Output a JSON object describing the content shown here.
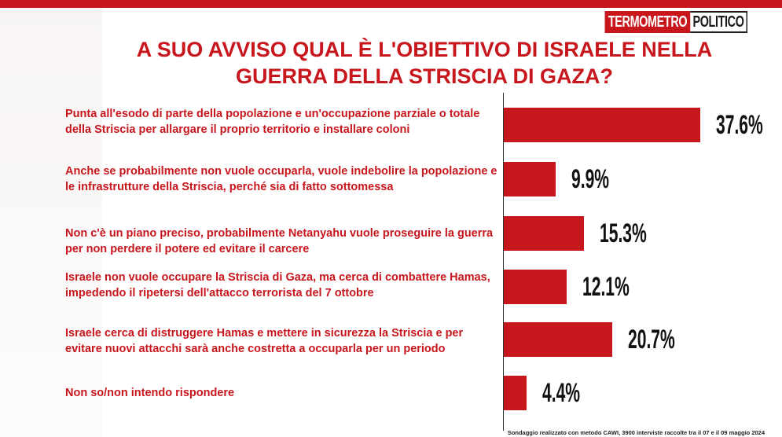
{
  "logo": {
    "part1": "TERMOMETRO",
    "part2": "POLITICO"
  },
  "title_lines": [
    "A SUO AVVISO QUAL È L'OBIETTIVO DI ISRAELE NELLA",
    "GUERRA DELLA STRISCIA DI GAZA?"
  ],
  "chart_data": {
    "type": "bar",
    "orientation": "horizontal",
    "title": "A SUO AVVISO QUAL È L'OBIETTIVO DI ISRAELE NELLA GUERRA DELLA STRISCIA DI GAZA?",
    "categories": [
      "Punta all'esodo di parte della popolazione e  un'occupazione parziale o totale della Striscia per allargare il proprio territorio e installare coloni",
      "Anche se probabilmente non vuole occuparla, vuole indebolire la popolazione e le infrastrutture della Striscia, perché sia di fatto sottomessa",
      "Non c'è un piano preciso, probabilmente Netanyahu vuole proseguire la guerra per non perdere il potere ed evitare il carcere",
      "Israele non vuole occupare la Striscia di Gaza, ma cerca di combattere Hamas, impedendo il ripetersi dell'attacco terrorista del 7 ottobre",
      "Israele cerca di distruggere Hamas e mettere in sicurezza la Striscia e per evitare nuovi attacchi sarà anche costretta a occuparla per un periodo",
      "Non so/non intendo rispondere"
    ],
    "values": [
      37.6,
      9.9,
      15.3,
      12.1,
      20.7,
      4.4
    ],
    "value_labels": [
      "37.6%",
      "9.9%",
      "15.3%",
      "12.1%",
      "20.7%",
      "4.4%"
    ],
    "bar_color": "#c8161d",
    "grid": false,
    "legend": "none"
  },
  "footnote": "Sondaggio realizzato con metodo CAWI, 3900 interviste raccolte tra il 07 e il 09 maggio 2024"
}
